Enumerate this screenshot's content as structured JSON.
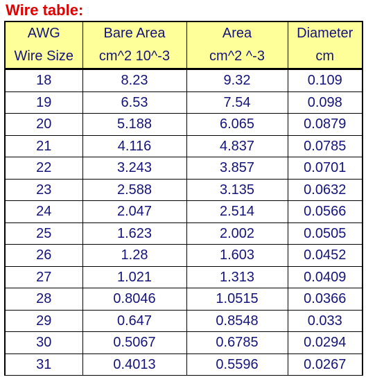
{
  "title": "Wire table:",
  "headers": [
    {
      "line1": "AWG",
      "line2": "Wire Size"
    },
    {
      "line1": "Bare Area",
      "line2": "cm^2 10^-3"
    },
    {
      "line1": "Area",
      "line2": "cm^2 ^-3"
    },
    {
      "line1": "Diameter",
      "line2": "cm"
    }
  ],
  "rows": [
    [
      "18",
      "8.23",
      "9.32",
      "0.109"
    ],
    [
      "19",
      "6.53",
      "7.54",
      "0.098"
    ],
    [
      "20",
      "5.188",
      "6.065",
      "0.0879"
    ],
    [
      "21",
      "4.116",
      "4.837",
      "0.0785"
    ],
    [
      "22",
      "3.243",
      "3.857",
      "0.0701"
    ],
    [
      "23",
      "2.588",
      "3.135",
      "0.0632"
    ],
    [
      "24",
      "2.047",
      "2.514",
      "0.0566"
    ],
    [
      "25",
      "1.623",
      "2.002",
      "0.0505"
    ],
    [
      "26",
      "1.28",
      "1.603",
      "0.0452"
    ],
    [
      "27",
      "1.021",
      "1.313",
      "0.0409"
    ],
    [
      "28",
      "0.8046",
      "1.0515",
      "0.0366"
    ],
    [
      "29",
      "0.647",
      "0.8548",
      "0.033"
    ],
    [
      "30",
      "0.5067",
      "0.6785",
      "0.0294"
    ],
    [
      "31",
      "0.4013",
      "0.5596",
      "0.0267"
    ]
  ]
}
